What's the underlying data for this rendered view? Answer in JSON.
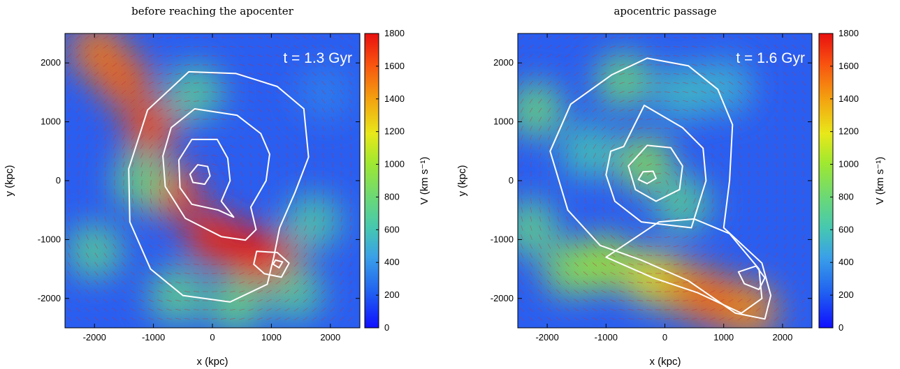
{
  "colors": {
    "colormap": [
      "#1010ff",
      "#2060f0",
      "#3aa0e8",
      "#46c8b0",
      "#6ad878",
      "#a0e830",
      "#e8e81a",
      "#f4a010",
      "#f85010",
      "#e81010"
    ],
    "contour": "#ffffff",
    "arrow": "#c03040"
  },
  "chart_data": [
    {
      "type": "heatmap",
      "title": "before reaching the apocenter",
      "annotation": "t = 1.3 Gyr",
      "xlabel": "x (kpc)",
      "ylabel": "y (kpc)",
      "xlim": [
        -2500,
        2500
      ],
      "ylim": [
        -2500,
        2500
      ],
      "xticks": [
        -2000,
        -1000,
        0,
        1000,
        2000
      ],
      "yticks": [
        -2000,
        -1000,
        0,
        1000,
        2000
      ],
      "colorbar": {
        "label": "V (km s⁻¹)",
        "range": [
          0,
          1800
        ],
        "ticks": [
          0,
          200,
          400,
          600,
          800,
          1000,
          1200,
          1400,
          1600,
          1800
        ]
      },
      "contours": [
        [
          [
            -250,
            270
          ],
          [
            -80,
            240
          ],
          [
            -40,
            80
          ],
          [
            -130,
            -60
          ],
          [
            -330,
            -30
          ],
          [
            -380,
            110
          ]
        ],
        [
          [
            -350,
            700
          ],
          [
            80,
            700
          ],
          [
            260,
            380
          ],
          [
            300,
            0
          ],
          [
            150,
            -350
          ],
          [
            360,
            -620
          ],
          [
            100,
            -500
          ],
          [
            -350,
            -400
          ],
          [
            -550,
            -120
          ],
          [
            -570,
            350
          ]
        ],
        [
          [
            -300,
            1220
          ],
          [
            420,
            1110
          ],
          [
            820,
            800
          ],
          [
            970,
            450
          ],
          [
            910,
            0
          ],
          [
            650,
            -450
          ],
          [
            740,
            -830
          ],
          [
            560,
            -1010
          ],
          [
            150,
            -950
          ],
          [
            -460,
            -640
          ],
          [
            -800,
            -100
          ],
          [
            -840,
            420
          ],
          [
            -700,
            900
          ]
        ],
        [
          [
            -400,
            1850
          ],
          [
            400,
            1820
          ],
          [
            1100,
            1600
          ],
          [
            1550,
            1220
          ],
          [
            1630,
            400
          ],
          [
            1400,
            -200
          ],
          [
            1140,
            -800
          ],
          [
            1040,
            -1300
          ],
          [
            930,
            -1760
          ],
          [
            300,
            -2060
          ],
          [
            -500,
            -1950
          ],
          [
            -1050,
            -1500
          ],
          [
            -1400,
            -700
          ],
          [
            -1420,
            200
          ],
          [
            -1100,
            1200
          ]
        ],
        [
          [
            750,
            -1200
          ],
          [
            1100,
            -1220
          ],
          [
            1300,
            -1400
          ],
          [
            1170,
            -1640
          ],
          [
            880,
            -1580
          ],
          [
            700,
            -1420
          ]
        ],
        [
          [
            1070,
            -1350
          ],
          [
            1190,
            -1380
          ],
          [
            1130,
            -1480
          ],
          [
            1030,
            -1420
          ]
        ]
      ],
      "hotspots": [
        {
          "x": -1950,
          "y": 2200,
          "speed": 1500
        },
        {
          "x": -1500,
          "y": 1700,
          "speed": 1550
        },
        {
          "x": -1050,
          "y": 900,
          "speed": 1600
        },
        {
          "x": -650,
          "y": -200,
          "speed": 1650
        },
        {
          "x": 0,
          "y": -950,
          "speed": 1700
        },
        {
          "x": 600,
          "y": -1200,
          "speed": 1780
        },
        {
          "x": 1050,
          "y": -1400,
          "speed": 1750
        },
        {
          "x": -2000,
          "y": -1200,
          "speed": 700
        },
        {
          "x": -600,
          "y": -1950,
          "speed": 750
        },
        {
          "x": 400,
          "y": -2100,
          "speed": 800
        },
        {
          "x": 1400,
          "y": -1900,
          "speed": 700
        },
        {
          "x": -1200,
          "y": 0,
          "speed": 800
        },
        {
          "x": 1700,
          "y": -700,
          "speed": 650
        },
        {
          "x": 1900,
          "y": 1500,
          "speed": 300
        },
        {
          "x": -300,
          "y": 1500,
          "speed": 700
        }
      ]
    },
    {
      "type": "heatmap",
      "title": "apocentric passage",
      "annotation": "t = 1.6 Gyr",
      "xlabel": "x (kpc)",
      "ylabel": "y (kpc)",
      "xlim": [
        -2500,
        2500
      ],
      "ylim": [
        -2500,
        2500
      ],
      "xticks": [
        -2000,
        -1000,
        0,
        1000,
        2000
      ],
      "yticks": [
        -2000,
        -1000,
        0,
        1000,
        2000
      ],
      "colorbar": {
        "label": "V (km s⁻¹)",
        "range": [
          0,
          1800
        ],
        "ticks": [
          0,
          200,
          400,
          600,
          800,
          1000,
          1200,
          1400,
          1600,
          1800
        ]
      },
      "contours": [
        [
          [
            -370,
            150
          ],
          [
            -200,
            160
          ],
          [
            -150,
            40
          ],
          [
            -300,
            -50
          ],
          [
            -450,
            20
          ]
        ],
        [
          [
            -300,
            600
          ],
          [
            100,
            560
          ],
          [
            300,
            250
          ],
          [
            250,
            -150
          ],
          [
            -150,
            -350
          ],
          [
            -500,
            -150
          ],
          [
            -620,
            250
          ]
        ],
        [
          [
            -350,
            1280
          ],
          [
            300,
            900
          ],
          [
            650,
            550
          ],
          [
            700,
            0
          ],
          [
            450,
            -800
          ],
          [
            -400,
            -700
          ],
          [
            -850,
            -350
          ],
          [
            -1000,
            100
          ],
          [
            -920,
            500
          ],
          [
            -700,
            580
          ]
        ],
        [
          [
            -300,
            2080
          ],
          [
            400,
            1950
          ],
          [
            900,
            1550
          ],
          [
            1150,
            950
          ],
          [
            1100,
            0
          ],
          [
            1000,
            -800
          ],
          [
            1650,
            -1400
          ],
          [
            1800,
            -1950
          ],
          [
            1700,
            -2350
          ],
          [
            1200,
            -2250
          ],
          [
            400,
            -1700
          ],
          [
            -400,
            -1350
          ],
          [
            -1100,
            -1100
          ],
          [
            -1650,
            -500
          ],
          [
            -1950,
            500
          ],
          [
            -1600,
            1300
          ],
          [
            -900,
            1800
          ]
        ],
        [
          [
            -1000,
            -1300
          ],
          [
            -200,
            -1650
          ],
          [
            550,
            -1900
          ],
          [
            1300,
            -2250
          ],
          [
            1650,
            -2000
          ],
          [
            1600,
            -1500
          ],
          [
            1100,
            -900
          ],
          [
            500,
            -650
          ],
          [
            -100,
            -700
          ]
        ],
        [
          [
            1250,
            -1550
          ],
          [
            1550,
            -1450
          ],
          [
            1700,
            -1650
          ],
          [
            1600,
            -1850
          ],
          [
            1350,
            -1750
          ]
        ]
      ],
      "hotspots": [
        {
          "x": -2200,
          "y": 1200,
          "speed": 800
        },
        {
          "x": -2300,
          "y": -800,
          "speed": 750
        },
        {
          "x": -1600,
          "y": -1500,
          "speed": 900
        },
        {
          "x": -1000,
          "y": -1400,
          "speed": 1000
        },
        {
          "x": -200,
          "y": -1650,
          "speed": 1200
        },
        {
          "x": 400,
          "y": -1850,
          "speed": 1450
        },
        {
          "x": 900,
          "y": -2050,
          "speed": 1550
        },
        {
          "x": 1450,
          "y": -2200,
          "speed": 1450
        },
        {
          "x": -700,
          "y": 1700,
          "speed": 800
        },
        {
          "x": 300,
          "y": 1500,
          "speed": 550
        },
        {
          "x": -350,
          "y": 300,
          "speed": 900
        },
        {
          "x": 1000,
          "y": 1600,
          "speed": 500
        },
        {
          "x": -1300,
          "y": 500,
          "speed": 600
        },
        {
          "x": 300,
          "y": -400,
          "speed": 700
        }
      ]
    }
  ]
}
